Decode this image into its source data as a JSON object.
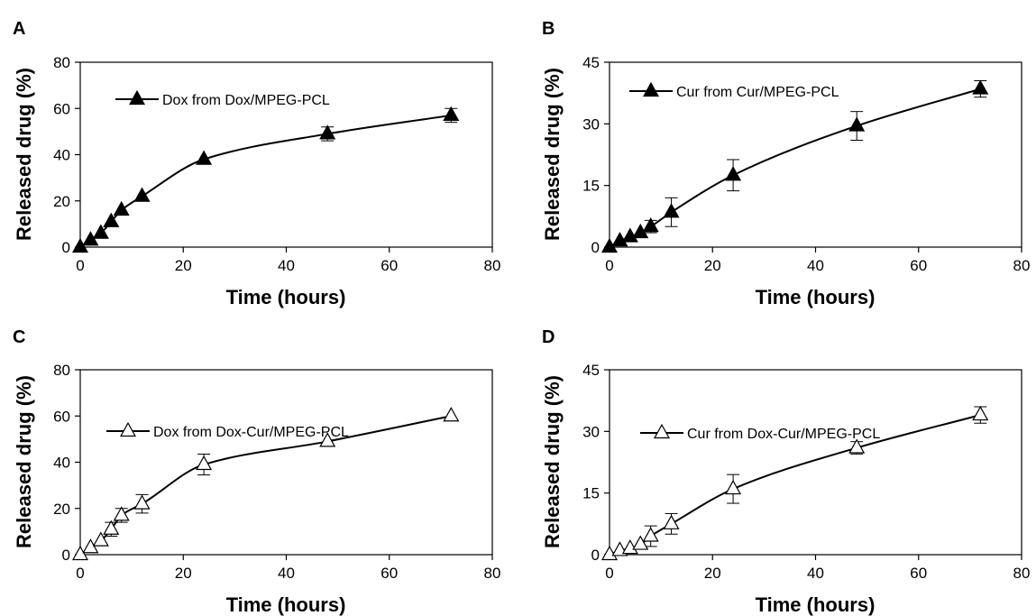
{
  "chart_data": [
    {
      "panel": "A",
      "type": "line",
      "xlabel": "Time (hours)",
      "ylabel": "Released drug (%)",
      "xlim": [
        0,
        80
      ],
      "ylim": [
        0,
        80
      ],
      "xticks": [
        "0",
        "20",
        "40",
        "60",
        "80"
      ],
      "yticks": [
        "0",
        "20",
        "40",
        "60",
        "80"
      ],
      "grid": false,
      "legend_position": "top-left",
      "series": [
        {
          "name": "Dox from Dox/MPEG-PCL",
          "marker": "filled-triangle",
          "x": [
            0,
            2,
            4,
            6,
            8,
            12,
            24,
            48,
            72
          ],
          "y": [
            0,
            3,
            6,
            11,
            16,
            22,
            38,
            49,
            57
          ],
          "error": [
            0,
            0,
            0,
            0,
            0,
            0,
            0,
            3,
            3
          ]
        }
      ]
    },
    {
      "panel": "B",
      "type": "line",
      "xlabel": "Time (hours)",
      "ylabel": "Released drug (%)",
      "xlim": [
        0,
        80
      ],
      "ylim": [
        0,
        45
      ],
      "xticks": [
        "0",
        "20",
        "40",
        "60",
        "80"
      ],
      "yticks": [
        "0",
        "15",
        "30",
        "45"
      ],
      "grid": false,
      "legend_position": "top-left",
      "series": [
        {
          "name": "Cur from Cur/MPEG-PCL",
          "marker": "filled-triangle",
          "x": [
            0,
            2,
            4,
            6,
            8,
            12,
            24,
            48,
            72
          ],
          "y": [
            0,
            1.5,
            2.5,
            3.5,
            5,
            8.5,
            17.5,
            29.5,
            38.5
          ],
          "error": [
            0,
            0,
            0,
            0,
            1.5,
            3.5,
            3.8,
            3.5,
            2
          ]
        }
      ]
    },
    {
      "panel": "C",
      "type": "line",
      "xlabel": "Time (hours)",
      "ylabel": "Released drug (%)",
      "xlim": [
        0,
        80
      ],
      "ylim": [
        0,
        80
      ],
      "xticks": [
        "0",
        "20",
        "40",
        "60",
        "80"
      ],
      "yticks": [
        "0",
        "20",
        "40",
        "60",
        "80"
      ],
      "grid": false,
      "legend_position": "top-left",
      "series": [
        {
          "name": "Dox from Dox-Cur/MPEG-PCL",
          "marker": "open-triangle",
          "x": [
            0,
            2,
            4,
            6,
            8,
            12,
            24,
            48,
            72
          ],
          "y": [
            0,
            3,
            6,
            11,
            17,
            22,
            39,
            49,
            60
          ],
          "error": [
            0,
            0,
            0,
            3,
            3,
            4,
            4.5,
            0,
            0
          ]
        }
      ]
    },
    {
      "panel": "D",
      "type": "line",
      "xlabel": "Time (hours)",
      "ylabel": "Released drug (%)",
      "xlim": [
        0,
        80
      ],
      "ylim": [
        0,
        45
      ],
      "xticks": [
        "0",
        "20",
        "40",
        "60",
        "80"
      ],
      "yticks": [
        "0",
        "15",
        "30",
        "45"
      ],
      "grid": false,
      "legend_position": "top-left",
      "series": [
        {
          "name": "Cur from Dox-Cur/MPEG-PCL",
          "marker": "open-triangle",
          "x": [
            0,
            2,
            4,
            6,
            8,
            12,
            24,
            48,
            72
          ],
          "y": [
            0,
            1,
            1.5,
            2.5,
            4.5,
            7.5,
            16,
            26,
            34
          ],
          "error": [
            0,
            0,
            0,
            0,
            2.5,
            2.5,
            3.5,
            1.5,
            2
          ]
        }
      ]
    }
  ]
}
